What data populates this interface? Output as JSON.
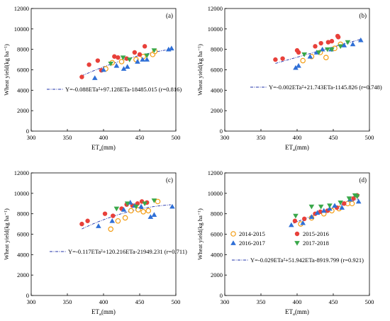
{
  "legend_entries": [
    {
      "label": "2014-2015",
      "marker": "open-circle",
      "color": "#f39c12"
    },
    {
      "label": "2015-2016",
      "marker": "filled-circle",
      "color": "#e8403a"
    },
    {
      "label": "2016-2017",
      "marker": "filled-triangle-up",
      "color": "#2f6fd6"
    },
    {
      "label": "2017-2018",
      "marker": "filled-triangle-down",
      "color": "#3aa84a"
    }
  ],
  "fit_line_color": "#2233aa",
  "chart_data": [
    {
      "type": "scatter",
      "panel_label": "(a)",
      "xlabel": "ETa(mm)",
      "xlabel_main": "ET",
      "xlabel_sub": "a",
      "xlabel_unit": "(mm)",
      "ylabel": "Wheat yield(kg ha⁻¹)",
      "xlim": [
        300,
        500
      ],
      "ylim": [
        0,
        12000
      ],
      "xticks": [
        300,
        350,
        400,
        450,
        500
      ],
      "yticks": [
        0,
        2000,
        4000,
        6000,
        8000,
        10000,
        12000
      ],
      "equation": "Y=-0.088ETa²+97.128ETa-18485.015 (r=0.816)",
      "fit_coeffs": [
        -0.088,
        97.128,
        -18485.015
      ],
      "fit_range": [
        370,
        493
      ],
      "series": [
        {
          "name": "2014-2015",
          "points": [
            [
              403,
              6100
            ],
            [
              412,
              6700
            ],
            [
              425,
              6800
            ],
            [
              445,
              7000
            ],
            [
              455,
              7300
            ],
            [
              468,
              7500
            ],
            [
              471,
              7800
            ]
          ]
        },
        {
          "name": "2015-2016",
          "points": [
            [
              370,
              5300
            ],
            [
              380,
              6500
            ],
            [
              392,
              6900
            ],
            [
              397,
              5950
            ],
            [
              415,
              7300
            ],
            [
              420,
              7200
            ],
            [
              432,
              7100
            ],
            [
              443,
              7700
            ],
            [
              450,
              7500
            ],
            [
              457,
              8300
            ]
          ]
        },
        {
          "name": "2016-2017",
          "points": [
            [
              388,
              5200
            ],
            [
              400,
              6000
            ],
            [
              418,
              6400
            ],
            [
              428,
              6100
            ],
            [
              433,
              6300
            ],
            [
              447,
              6800
            ],
            [
              454,
              7000
            ],
            [
              460,
              7000
            ],
            [
              490,
              8000
            ],
            [
              494,
              8100
            ]
          ]
        },
        {
          "name": "2017-2018",
          "points": [
            [
              410,
              6600
            ],
            [
              427,
              7200
            ],
            [
              436,
              7000
            ],
            [
              460,
              7400
            ],
            [
              470,
              7900
            ]
          ]
        }
      ]
    },
    {
      "type": "scatter",
      "panel_label": "(b)",
      "xlabel": "ETa(mm)",
      "xlabel_main": "ET",
      "xlabel_sub": "a",
      "xlabel_unit": "(mm)",
      "ylabel": "Wheat yield(kg ha⁻¹)",
      "xlim": [
        300,
        500
      ],
      "ylim": [
        0,
        12000
      ],
      "xticks": [
        300,
        350,
        400,
        450,
        500
      ],
      "yticks": [
        0,
        2000,
        4000,
        6000,
        8000,
        10000,
        12000
      ],
      "equation": "Y=-0.002ETa²+21.743ETa-1145.826 (r=0.748)",
      "fit_coeffs": [
        -0.002,
        21.743,
        -1145.826
      ],
      "fit_range": [
        370,
        490
      ],
      "series": [
        {
          "name": "2014-2015",
          "points": [
            [
              408,
              6900
            ],
            [
              420,
              7300
            ],
            [
              432,
              7700
            ],
            [
              440,
              7200
            ],
            [
              452,
              8100
            ],
            [
              460,
              8500
            ]
          ]
        },
        {
          "name": "2015-2016",
          "points": [
            [
              370,
              7000
            ],
            [
              380,
              7100
            ],
            [
              400,
              7900
            ],
            [
              402,
              7700
            ],
            [
              425,
              8300
            ],
            [
              433,
              8600
            ],
            [
              443,
              8700
            ],
            [
              448,
              8800
            ],
            [
              457,
              9200
            ],
            [
              456,
              9300
            ]
          ]
        },
        {
          "name": "2016-2017",
          "points": [
            [
              398,
              6200
            ],
            [
              402,
              6400
            ],
            [
              418,
              7300
            ],
            [
              427,
              7700
            ],
            [
              435,
              8000
            ],
            [
              447,
              8000
            ],
            [
              465,
              8400
            ],
            [
              477,
              8500
            ],
            [
              488,
              8900
            ]
          ]
        },
        {
          "name": "2017-2018",
          "points": [
            [
              410,
              7500
            ],
            [
              430,
              7700
            ],
            [
              442,
              8000
            ],
            [
              448,
              8000
            ],
            [
              460,
              8300
            ],
            [
              470,
              8700
            ]
          ]
        }
      ]
    },
    {
      "type": "scatter",
      "panel_label": "(c)",
      "xlabel": "ETa(mm)",
      "xlabel_main": "ET",
      "xlabel_sub": "a",
      "xlabel_unit": "(mm)",
      "ylabel": "Wheat yield(kg ha⁻¹)",
      "xlim": [
        300,
        500
      ],
      "ylim": [
        0,
        12000
      ],
      "xticks": [
        300,
        350,
        400,
        450,
        500
      ],
      "yticks": [
        0,
        2000,
        4000,
        6000,
        8000,
        10000,
        12000
      ],
      "equation": "Y=-0.117ETa²+120.216ETa-21949.231 (r=0.711)",
      "fit_coeffs": [
        -0.117,
        120.216,
        -21949.231
      ],
      "fit_range": [
        370,
        493
      ],
      "series": [
        {
          "name": "2014-2015",
          "points": [
            [
              410,
              6500
            ],
            [
              420,
              7300
            ],
            [
              430,
              7600
            ],
            [
              438,
              8300
            ],
            [
              448,
              8400
            ],
            [
              455,
              8200
            ],
            [
              462,
              8300
            ],
            [
              475,
              9200
            ]
          ]
        },
        {
          "name": "2015-2016",
          "points": [
            [
              370,
              7000
            ],
            [
              378,
              7300
            ],
            [
              402,
              8000
            ],
            [
              413,
              7800
            ],
            [
              425,
              8500
            ],
            [
              432,
              8900
            ],
            [
              440,
              8800
            ],
            [
              447,
              9000
            ],
            [
              453,
              9200
            ],
            [
              460,
              9100
            ]
          ]
        },
        {
          "name": "2016-2017",
          "points": [
            [
              393,
              6800
            ],
            [
              412,
              7300
            ],
            [
              428,
              8400
            ],
            [
              437,
              9100
            ],
            [
              443,
              8800
            ],
            [
              452,
              8700
            ],
            [
              465,
              7700
            ],
            [
              470,
              7900
            ],
            [
              495,
              8700
            ]
          ]
        },
        {
          "name": "2017-2018",
          "points": [
            [
              418,
              8500
            ],
            [
              433,
              9000
            ],
            [
              445,
              8700
            ],
            [
              457,
              9000
            ],
            [
              470,
              9300
            ]
          ]
        }
      ]
    },
    {
      "type": "scatter",
      "panel_label": "(d)",
      "xlabel": "ETa(mm)",
      "xlabel_main": "ET",
      "xlabel_sub": "a",
      "xlabel_unit": "(mm)",
      "ylabel": "Wheat yield(kg ha⁻¹)",
      "xlim": [
        300,
        500
      ],
      "ylim": [
        0,
        12000
      ],
      "xticks": [
        300,
        350,
        400,
        450,
        500
      ],
      "yticks": [
        0,
        2000,
        4000,
        6000,
        8000,
        10000,
        12000
      ],
      "equation": "Y=-0.029ETa²+51.942ETa-8919.799 (r=0.921)",
      "fit_coeffs": [
        -0.029,
        51.942,
        -8919.799
      ],
      "fit_range": [
        395,
        485
      ],
      "legend": "upper-left",
      "series": [
        {
          "name": "2014-2015",
          "points": [
            [
              405,
              7000
            ],
            [
              420,
              7600
            ],
            [
              437,
              8000
            ],
            [
              448,
              8300
            ],
            [
              458,
              8500
            ],
            [
              470,
              9000
            ],
            [
              476,
              9000
            ]
          ]
        },
        {
          "name": "2015-2016",
          "points": [
            [
              397,
              7300
            ],
            [
              410,
              7500
            ],
            [
              425,
              8000
            ],
            [
              432,
              8200
            ],
            [
              442,
              8300
            ],
            [
              455,
              8600
            ],
            [
              465,
              9000
            ],
            [
              478,
              9500
            ],
            [
              483,
              9800
            ]
          ]
        },
        {
          "name": "2016-2017",
          "points": [
            [
              392,
              6900
            ],
            [
              408,
              7100
            ],
            [
              420,
              7700
            ],
            [
              428,
              8100
            ],
            [
              437,
              8300
            ],
            [
              445,
              8500
            ],
            [
              452,
              8800
            ],
            [
              462,
              8600
            ],
            [
              473,
              9400
            ],
            [
              485,
              9200
            ]
          ]
        },
        {
          "name": "2017-2018",
          "points": [
            [
              398,
              7800
            ],
            [
              420,
              8700
            ],
            [
              433,
              8700
            ],
            [
              445,
              8800
            ],
            [
              460,
              9100
            ],
            [
              472,
              9500
            ],
            [
              480,
              9800
            ],
            [
              483,
              9700
            ]
          ]
        }
      ]
    }
  ]
}
